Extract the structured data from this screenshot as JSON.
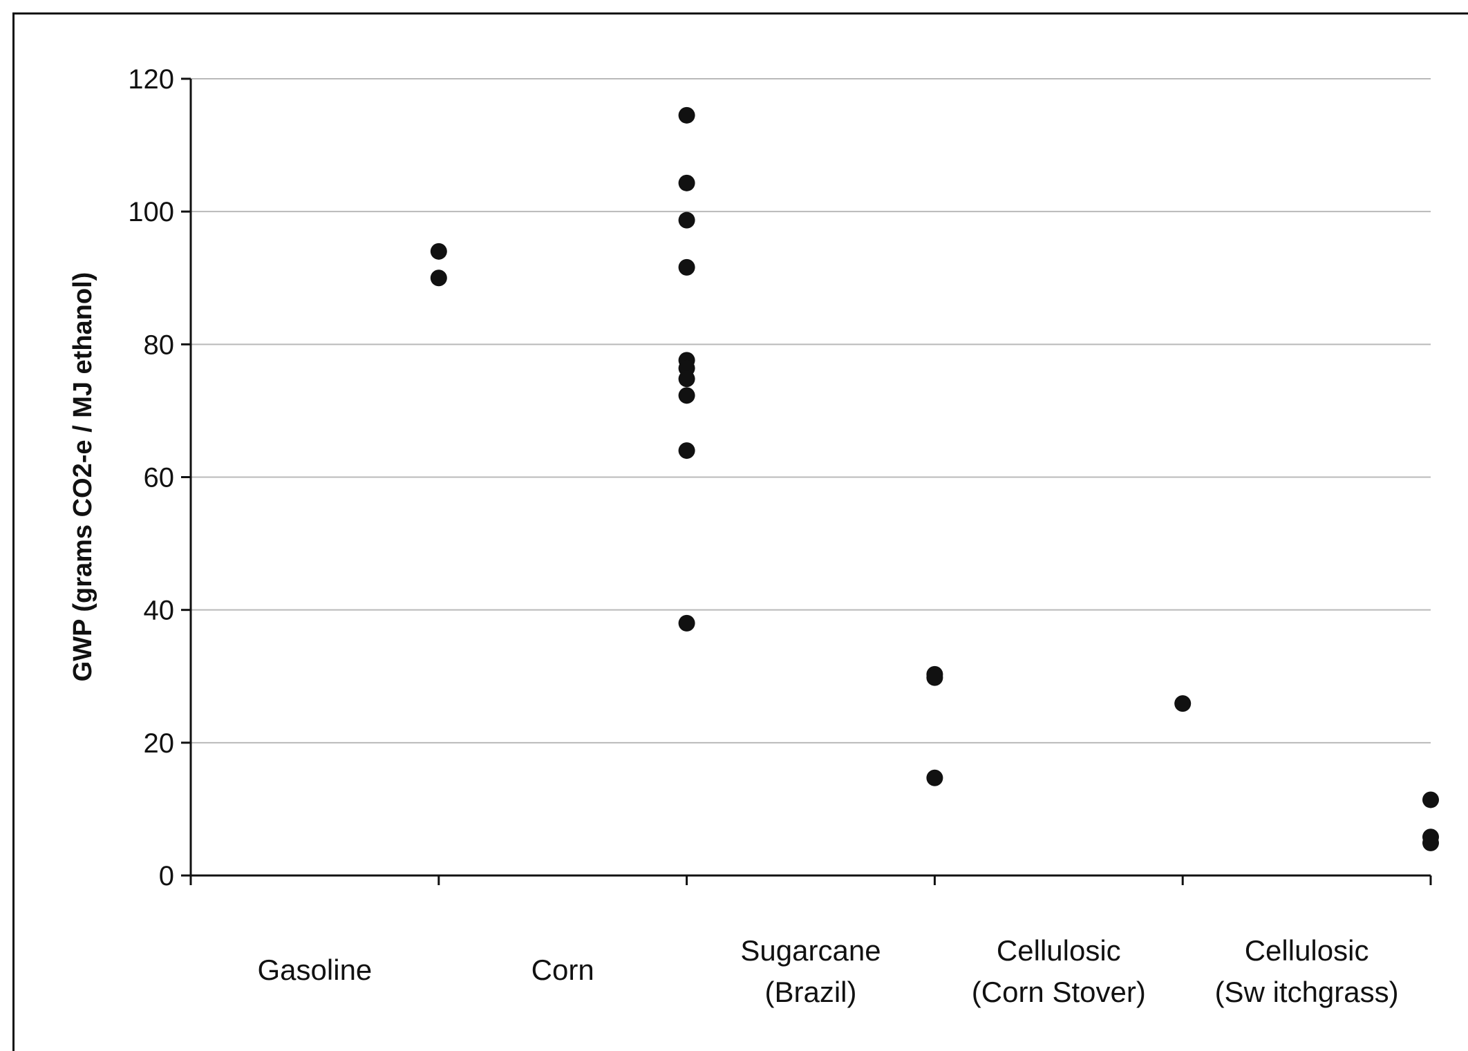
{
  "chart_data": {
    "type": "scatter",
    "title": "",
    "xlabel": "",
    "ylabel": "GWP (grams CO2-e / MJ ethanol)",
    "ylim": [
      0,
      120
    ],
    "yticks": [
      0,
      20,
      40,
      60,
      80,
      100,
      120
    ],
    "grid": true,
    "categories": [
      {
        "lines": [
          "Gasoline"
        ]
      },
      {
        "lines": [
          "Corn"
        ]
      },
      {
        "lines": [
          "Sugarcane",
          "(Brazil)"
        ]
      },
      {
        "lines": [
          "Cellulosic",
          "(Corn Stover)"
        ]
      },
      {
        "lines": [
          "Cellulosic",
          "(Sw itchgrass)"
        ]
      }
    ],
    "series": [
      {
        "values": [
          {
            "category": 0,
            "y": 94
          },
          {
            "category": 0,
            "y": 90
          },
          {
            "category": 1,
            "y": 114.5
          },
          {
            "category": 1,
            "y": 104.3
          },
          {
            "category": 1,
            "y": 98.7
          },
          {
            "category": 1,
            "y": 91.6
          },
          {
            "category": 1,
            "y": 77.6
          },
          {
            "category": 1,
            "y": 76.4
          },
          {
            "category": 1,
            "y": 74.8
          },
          {
            "category": 1,
            "y": 72.3
          },
          {
            "category": 1,
            "y": 64
          },
          {
            "category": 1,
            "y": 38
          },
          {
            "category": 2,
            "y": 30.3
          },
          {
            "category": 2,
            "y": 29.8
          },
          {
            "category": 2,
            "y": 14.7
          },
          {
            "category": 3,
            "y": 25.9
          },
          {
            "category": 4,
            "y": 11.4
          },
          {
            "category": 4,
            "y": 5.8
          },
          {
            "category": 4,
            "y": 4.9
          }
        ]
      }
    ]
  }
}
